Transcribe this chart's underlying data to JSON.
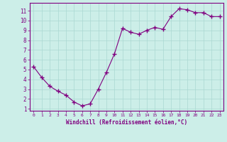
{
  "x": [
    0,
    1,
    2,
    3,
    4,
    5,
    6,
    7,
    8,
    9,
    10,
    11,
    12,
    13,
    14,
    15,
    16,
    17,
    18,
    19,
    20,
    21,
    22,
    23
  ],
  "y": [
    5.3,
    4.2,
    3.3,
    2.8,
    2.4,
    1.7,
    1.3,
    1.5,
    3.0,
    4.7,
    6.6,
    9.2,
    8.8,
    8.6,
    9.0,
    9.3,
    9.1,
    10.4,
    11.2,
    11.1,
    10.8,
    10.8,
    10.4,
    10.4
  ],
  "line_color": "#800080",
  "marker": "+",
  "marker_size": 4,
  "background_color": "#cceee8",
  "grid_color": "#aad8d2",
  "xlabel": "Windchill (Refroidissement éolien,°C)",
  "xlabel_color": "#800080",
  "tick_color": "#800080",
  "xlim": [
    -0.5,
    23.5
  ],
  "ylim": [
    0.8,
    11.8
  ],
  "yticks": [
    1,
    2,
    3,
    4,
    5,
    6,
    7,
    8,
    9,
    10,
    11
  ],
  "xticks": [
    0,
    1,
    2,
    3,
    4,
    5,
    6,
    7,
    8,
    9,
    10,
    11,
    12,
    13,
    14,
    15,
    16,
    17,
    18,
    19,
    20,
    21,
    22,
    23
  ],
  "spine_color": "#800080",
  "font_name": "monospace"
}
